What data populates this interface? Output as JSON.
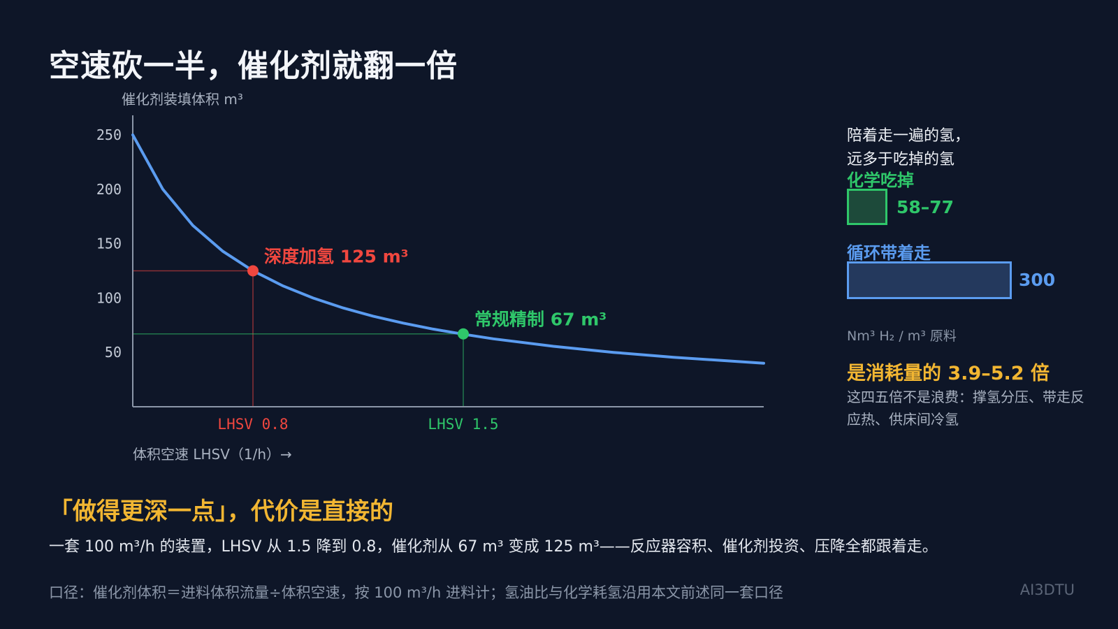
{
  "title": "空速砍一半，催化剂就翻一倍",
  "chart_data": {
    "type": "line",
    "ylabel": "催化剂装填体积 m³",
    "xlabel": "体积空速 LHSV（1/h）→",
    "yticks": [
      250,
      200,
      150,
      100,
      50
    ],
    "ylim": [
      0,
      250
    ],
    "xlim": [
      0.4,
      2.5
    ],
    "series": [
      {
        "x": [
          0.4,
          0.5,
          0.6,
          0.7,
          0.8,
          0.9,
          1.0,
          1.1,
          1.2,
          1.3,
          1.4,
          1.5,
          1.6,
          1.8,
          2.0,
          2.2,
          2.5
        ],
        "values": [
          250,
          200,
          166.7,
          142.9,
          125,
          111.1,
          100,
          90.9,
          83.3,
          76.9,
          71.4,
          66.7,
          62.5,
          55.6,
          50,
          45.5,
          40
        ]
      }
    ],
    "markers": [
      {
        "x": 0.8,
        "y": 125,
        "label": "深度加氢  125 m³",
        "xtick": "LHSV 0.8",
        "color": "#f0473f"
      },
      {
        "x": 1.5,
        "y": 67,
        "label": "常规精制  67 m³",
        "xtick": "LHSV 1.5",
        "color": "#2fc76a"
      }
    ],
    "colors": {
      "curve": "#5b9cf0",
      "axis": "#8b96a8"
    }
  },
  "side": {
    "heading_line1": "陪着走一遍的氢，",
    "heading_line2": "远多于吃掉的氢",
    "chem_label": "化学吃掉",
    "chem_value": "58–77",
    "cyc_label": "循环带着走",
    "cyc_value": "300",
    "unit": "Nm³ H₂ / m³ 原料",
    "ratio": "是消耗量的 3.9–5.2 倍",
    "ratio_note": "这四五倍不是浪费：撑氢分压、带走反应热、供床间冷氢"
  },
  "bottom": {
    "sub_title": "「做得更深一点」，代价是直接的",
    "desc": "一套 100 m³/h 的装置，LHSV 从 1.5 降到 0.8，催化剂从 67 m³ 变成 125 m³——反应器容积、催化剂投资、压降全都跟着走。",
    "footnote": "口径：催化剂体积＝进料体积流量÷体积空速，按 100 m³/h 进料计；氢油比与化学耗氢沿用本文前述同一套口径",
    "brand": "AI3DTU"
  }
}
